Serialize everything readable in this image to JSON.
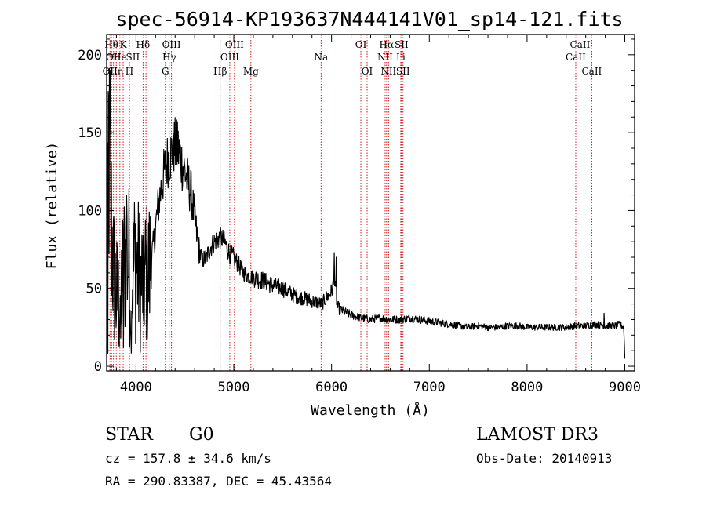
{
  "chart_data": {
    "type": "line",
    "title": "spec-56914-KP193637N444141V01_sp14-121.fits",
    "xlabel": "Wavelength (Å)",
    "ylabel": "Flux (relative)",
    "xlim": [
      3700,
      9100
    ],
    "ylim": [
      -3,
      213
    ],
    "xticks": [
      4000,
      5000,
      6000,
      7000,
      8000,
      9000
    ],
    "yticks": [
      0,
      50,
      100,
      150,
      200
    ],
    "grid": false,
    "series": [
      {
        "color": "#000000",
        "anchors": [
          [
            3700,
            5
          ],
          [
            3710,
            150
          ],
          [
            3725,
            130
          ],
          [
            3745,
            95
          ],
          [
            3770,
            60
          ],
          [
            3800,
            45
          ],
          [
            3830,
            40
          ],
          [
            3860,
            55
          ],
          [
            3900,
            75
          ],
          [
            3930,
            65
          ],
          [
            3960,
            55
          ],
          [
            3990,
            70
          ],
          [
            4020,
            60
          ],
          [
            4060,
            55
          ],
          [
            4100,
            58
          ],
          [
            4140,
            62
          ],
          [
            4180,
            78
          ],
          [
            4220,
            100
          ],
          [
            4260,
            115
          ],
          [
            4290,
            125
          ],
          [
            4320,
            132
          ],
          [
            4350,
            135
          ],
          [
            4380,
            142
          ],
          [
            4410,
            140
          ],
          [
            4440,
            138
          ],
          [
            4470,
            130
          ],
          [
            4500,
            125
          ],
          [
            4530,
            118
          ],
          [
            4560,
            112
          ],
          [
            4600,
            95
          ],
          [
            4640,
            75
          ],
          [
            4680,
            68
          ],
          [
            4720,
            70
          ],
          [
            4760,
            76
          ],
          [
            4800,
            80
          ],
          [
            4840,
            82
          ],
          [
            4880,
            82
          ],
          [
            4920,
            78
          ],
          [
            4960,
            72
          ],
          [
            5000,
            70
          ],
          [
            5050,
            65
          ],
          [
            5100,
            60
          ],
          [
            5150,
            58
          ],
          [
            5200,
            57
          ],
          [
            5300,
            55
          ],
          [
            5400,
            52
          ],
          [
            5500,
            50
          ],
          [
            5600,
            46
          ],
          [
            5700,
            44
          ],
          [
            5800,
            42
          ],
          [
            5900,
            40
          ],
          [
            5960,
            45
          ],
          [
            6000,
            48
          ],
          [
            6030,
            55
          ],
          [
            6060,
            38
          ],
          [
            6100,
            36
          ],
          [
            6200,
            33
          ],
          [
            6300,
            31
          ],
          [
            6400,
            30
          ],
          [
            6500,
            31
          ],
          [
            6600,
            30
          ],
          [
            6700,
            30
          ],
          [
            6800,
            31
          ],
          [
            6900,
            30
          ],
          [
            7000,
            29
          ],
          [
            7100,
            28
          ],
          [
            7200,
            27
          ],
          [
            7300,
            26
          ],
          [
            7400,
            25
          ],
          [
            7500,
            26
          ],
          [
            7600,
            25
          ],
          [
            7700,
            25
          ],
          [
            7800,
            26
          ],
          [
            7900,
            26
          ],
          [
            8000,
            25
          ],
          [
            8100,
            25
          ],
          [
            8200,
            25
          ],
          [
            8300,
            25
          ],
          [
            8400,
            25
          ],
          [
            8500,
            26
          ],
          [
            8600,
            26
          ],
          [
            8700,
            27
          ],
          [
            8800,
            26
          ],
          [
            8900,
            26
          ],
          [
            8950,
            27
          ],
          [
            8990,
            25
          ],
          [
            9000,
            5
          ]
        ],
        "spikes": [
          [
            3712,
            8
          ],
          [
            3738,
            190
          ],
          [
            3795,
            25
          ],
          [
            3845,
            18
          ],
          [
            3872,
            12
          ],
          [
            3905,
            110
          ],
          [
            3950,
            20
          ],
          [
            4075,
            30
          ],
          [
            4158,
            50
          ],
          [
            4380,
            150
          ],
          [
            4425,
            157
          ],
          [
            6027,
            73
          ],
          [
            6048,
            70
          ],
          [
            8790,
            34
          ]
        ]
      }
    ],
    "lines": [
      {
        "x": 3734,
        "label": "OII",
        "row": 3,
        "color": "#cc0000"
      },
      {
        "x": 3750,
        "label": "Hθ",
        "row": 1,
        "color": "#cc0000"
      },
      {
        "x": 3770,
        "label": "OII",
        "row": 2,
        "color": "#cc0000"
      },
      {
        "x": 3798,
        "label": "Hη",
        "row": 3,
        "color": "#cc0000"
      },
      {
        "x": 3835,
        "label": "He",
        "row": 2,
        "color": "#cc0000"
      },
      {
        "x": 3869,
        "label": "K",
        "row": 1,
        "color": "#cc0000"
      },
      {
        "x": 3933,
        "label": "H",
        "row": 3,
        "color": "#cc0000"
      },
      {
        "x": 3968,
        "label": "SII",
        "row": 2,
        "color": "#cc0000"
      },
      {
        "x": 4072,
        "label": "Hδ",
        "row": 1,
        "color": "#cc0000"
      },
      {
        "x": 4102,
        "label": "",
        "row": 2,
        "color": "#cc0000"
      },
      {
        "x": 4300,
        "label": "G",
        "row": 3,
        "color": "#cc0000"
      },
      {
        "x": 4340,
        "label": "Hγ",
        "row": 2,
        "color": "#cc0000"
      },
      {
        "x": 4363,
        "label": "OIII",
        "row": 1,
        "color": "#cc0000"
      },
      {
        "x": 4861,
        "label": "Hβ",
        "row": 3,
        "color": "#cc0000"
      },
      {
        "x": 4959,
        "label": "OIII",
        "row": 2,
        "color": "#cc0000"
      },
      {
        "x": 5007,
        "label": "OIII",
        "row": 1,
        "color": "#cc0000"
      },
      {
        "x": 5175,
        "label": "Mg",
        "row": 3,
        "color": "#cc0000"
      },
      {
        "x": 5893,
        "label": "Na",
        "row": 2,
        "color": "#cc0000"
      },
      {
        "x": 6300,
        "label": "OI",
        "row": 1,
        "color": "#cc0000"
      },
      {
        "x": 6364,
        "label": "OI",
        "row": 3,
        "color": "#cc0000"
      },
      {
        "x": 6548,
        "label": "NII",
        "row": 2,
        "color": "#cc0000"
      },
      {
        "x": 6563,
        "label": "Hα",
        "row": 1,
        "color": "#cc0000"
      },
      {
        "x": 6583,
        "label": "NII",
        "row": 3,
        "color": "#cc0000"
      },
      {
        "x": 6708,
        "label": "Li",
        "row": 2,
        "color": "#cc0000"
      },
      {
        "x": 6716,
        "label": "SII",
        "row": 1,
        "color": "#cc0000"
      },
      {
        "x": 6731,
        "label": "SII",
        "row": 3,
        "color": "#cc0000"
      },
      {
        "x": 8498,
        "label": "CaII",
        "row": 2,
        "color": "#cc0000"
      },
      {
        "x": 8542,
        "label": "CaII",
        "row": 1,
        "color": "#cc0000"
      },
      {
        "x": 8662,
        "label": "CaII",
        "row": 3,
        "color": "#cc0000"
      }
    ]
  },
  "info": {
    "class_label": "STAR",
    "subclass": "G0",
    "survey": "LAMOST DR3",
    "cz": "cz = 157.8 ± 34.6 km/s",
    "obs_date": "Obs-Date: 20140913",
    "coords": "RA = 290.83387, DEC =  45.43564"
  }
}
